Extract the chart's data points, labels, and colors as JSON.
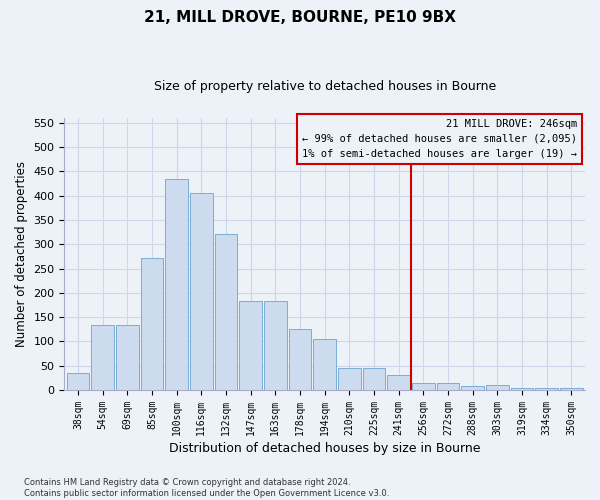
{
  "title1": "21, MILL DROVE, BOURNE, PE10 9BX",
  "title2": "Size of property relative to detached houses in Bourne",
  "xlabel": "Distribution of detached houses by size in Bourne",
  "ylabel": "Number of detached properties",
  "categories": [
    "38sqm",
    "54sqm",
    "69sqm",
    "85sqm",
    "100sqm",
    "116sqm",
    "132sqm",
    "147sqm",
    "163sqm",
    "178sqm",
    "194sqm",
    "210sqm",
    "225sqm",
    "241sqm",
    "256sqm",
    "272sqm",
    "288sqm",
    "303sqm",
    "319sqm",
    "334sqm",
    "350sqm"
  ],
  "values": [
    35,
    133,
    133,
    272,
    435,
    405,
    322,
    184,
    184,
    125,
    105,
    46,
    46,
    30,
    15,
    15,
    8,
    10,
    5,
    5,
    5
  ],
  "bar_color": "#ccdcee",
  "bar_edge_color": "#7aadd4",
  "grid_color": "#ccd8ea",
  "bg_color": "#edf2f8",
  "vline_color": "#cc0000",
  "annotation_line1": "21 MILL DROVE: 246sqm",
  "annotation_line2": "← 99% of detached houses are smaller (2,095)",
  "annotation_line3": "1% of semi-detached houses are larger (19) →",
  "ylim": [
    0,
    560
  ],
  "yticks": [
    0,
    50,
    100,
    150,
    200,
    250,
    300,
    350,
    400,
    450,
    500,
    550
  ],
  "footer_line1": "Contains HM Land Registry data © Crown copyright and database right 2024.",
  "footer_line2": "Contains public sector information licensed under the Open Government Licence v3.0."
}
